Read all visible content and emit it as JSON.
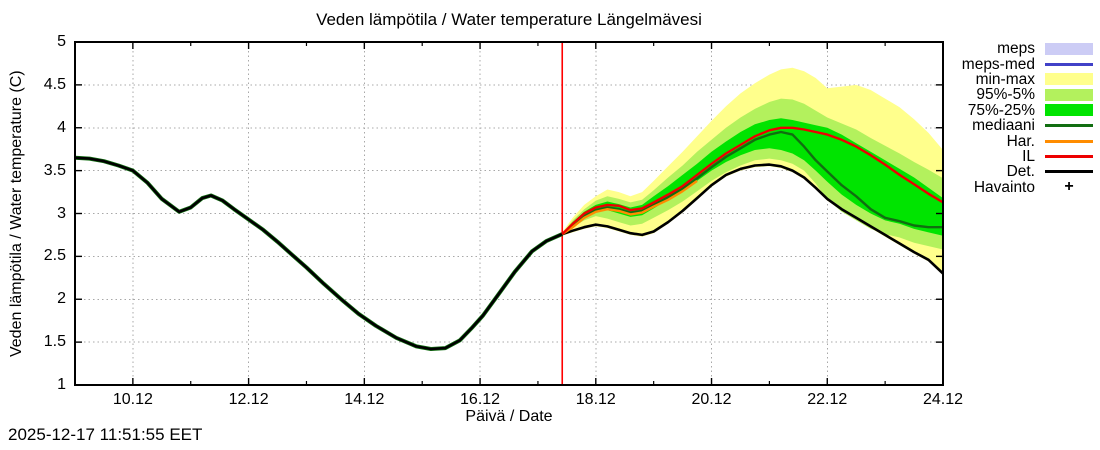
{
  "header": {
    "title": "Veden lämpötila / Water temperature Längelmävesi"
  },
  "footer": {
    "timestamp": "2025-12-17 11:51:55 EET"
  },
  "axes": {
    "xlabel": "Päivä / Date",
    "ylabel": "Veden lämpötila / Water temperature (C)"
  },
  "colors": {
    "grid": "#a8a8a8",
    "border": "#000000",
    "now_line": "#ff0000",
    "meps_band": "#ccccf5",
    "meps_med": "#4141c8",
    "min_max": "#ffff8c",
    "p95_5": "#b3f15d",
    "p75_25": "#00e400",
    "mediaani": "#116e11",
    "har": "#ff8c00",
    "il": "#ed0000",
    "det": "#000000",
    "havainto": "#000000"
  },
  "legend": {
    "items": [
      {
        "label": "meps",
        "type": "band",
        "color": "#ccccf5"
      },
      {
        "label": "meps-med",
        "type": "line",
        "color": "#4141c8"
      },
      {
        "label": "min-max",
        "type": "band",
        "color": "#ffff8c"
      },
      {
        "label": "95%-5%",
        "type": "band",
        "color": "#b3f15d"
      },
      {
        "label": "75%-25%",
        "type": "band",
        "color": "#00e400"
      },
      {
        "label": "mediaani",
        "type": "line",
        "color": "#116e11"
      },
      {
        "label": "Har.",
        "type": "line",
        "color": "#ff8c00"
      },
      {
        "label": "IL",
        "type": "line",
        "color": "#ed0000"
      },
      {
        "label": "Det.",
        "type": "line",
        "color": "#000000"
      },
      {
        "label": "Havainto",
        "type": "point",
        "color": "#000000"
      }
    ]
  },
  "chart_data": {
    "type": "line",
    "title": "Veden lämpötila / Water temperature Längelmävesi",
    "xlabel": "Päivä / Date",
    "ylabel": "Veden lämpötila / Water temperature (C)",
    "x_unit": "day of December (x.12)",
    "xlim": [
      9,
      24
    ],
    "ylim": [
      1,
      5
    ],
    "grid": true,
    "legend_position": "outside-right",
    "x_ticks": [
      {
        "d": 10,
        "label": "10.12"
      },
      {
        "d": 12,
        "label": "12.12"
      },
      {
        "d": 14,
        "label": "14.12"
      },
      {
        "d": 16,
        "label": "16.12"
      },
      {
        "d": 18,
        "label": "18.12"
      },
      {
        "d": 20,
        "label": "20.12"
      },
      {
        "d": 22,
        "label": "22.12"
      },
      {
        "d": 24,
        "label": "24.12"
      }
    ],
    "x_minor_ticks": [
      11,
      13,
      15,
      17,
      19,
      21,
      23
    ],
    "y_ticks": [
      {
        "v": 1,
        "label": "1"
      },
      {
        "v": 1.5,
        "label": "1.5"
      },
      {
        "v": 2,
        "label": "2"
      },
      {
        "v": 2.5,
        "label": "2.5"
      },
      {
        "v": 3,
        "label": "3"
      },
      {
        "v": 3.5,
        "label": "3.5"
      },
      {
        "v": 4,
        "label": "4"
      },
      {
        "v": 4.5,
        "label": "4.5"
      },
      {
        "v": 5,
        "label": "5"
      }
    ],
    "now_line": {
      "x": 17.42,
      "color": "#ff0000"
    },
    "observation": {
      "name": "Havainto / Det. (observed)",
      "x": [
        9.0,
        9.25,
        9.5,
        9.75,
        10.0,
        10.25,
        10.5,
        10.8,
        11.0,
        11.2,
        11.35,
        11.55,
        11.75,
        12.0,
        12.25,
        12.5,
        12.75,
        13.0,
        13.3,
        13.6,
        13.9,
        14.2,
        14.55,
        14.9,
        15.15,
        15.4,
        15.65,
        15.85,
        16.05,
        16.3,
        16.6,
        16.9,
        17.15,
        17.42
      ],
      "y": [
        3.65,
        3.64,
        3.61,
        3.56,
        3.5,
        3.36,
        3.17,
        3.02,
        3.07,
        3.18,
        3.21,
        3.15,
        3.05,
        2.93,
        2.81,
        2.67,
        2.52,
        2.37,
        2.18,
        2.0,
        1.83,
        1.69,
        1.55,
        1.45,
        1.42,
        1.43,
        1.52,
        1.66,
        1.81,
        2.04,
        2.32,
        2.56,
        2.68,
        2.76
      ]
    },
    "forecast_x": [
      17.42,
      17.6,
      17.8,
      18.0,
      18.2,
      18.4,
      18.6,
      18.8,
      19.0,
      19.25,
      19.5,
      19.75,
      20.0,
      20.25,
      20.5,
      20.75,
      21.0,
      21.2,
      21.4,
      21.6,
      21.8,
      22.0,
      22.25,
      22.5,
      22.75,
      23.0,
      23.25,
      23.5,
      23.75,
      24.0
    ],
    "bands": [
      {
        "name": "min-max",
        "color": "#ffff8c",
        "upper": [
          2.78,
          2.95,
          3.1,
          3.2,
          3.28,
          3.25,
          3.2,
          3.25,
          3.38,
          3.55,
          3.72,
          3.9,
          4.08,
          4.25,
          4.4,
          4.52,
          4.62,
          4.68,
          4.7,
          4.66,
          4.58,
          4.46,
          4.48,
          4.5,
          4.44,
          4.34,
          4.24,
          4.1,
          3.94,
          3.74
        ],
        "lower": [
          2.74,
          2.78,
          2.82,
          2.85,
          2.83,
          2.79,
          2.75,
          2.73,
          2.77,
          2.88,
          3.01,
          3.16,
          3.31,
          3.43,
          3.5,
          3.54,
          3.55,
          3.53,
          3.48,
          3.4,
          3.28,
          3.15,
          3.03,
          2.93,
          2.83,
          2.73,
          2.63,
          2.53,
          2.44,
          2.28
        ]
      },
      {
        "name": "95%-5%",
        "color": "#b3f15d",
        "upper": [
          2.77,
          2.92,
          3.05,
          3.15,
          3.2,
          3.17,
          3.13,
          3.16,
          3.27,
          3.42,
          3.56,
          3.72,
          3.86,
          4.0,
          4.12,
          4.22,
          4.3,
          4.34,
          4.33,
          4.28,
          4.2,
          4.12,
          4.05,
          3.98,
          3.88,
          3.79,
          3.7,
          3.6,
          3.51,
          3.41
        ],
        "lower": [
          2.75,
          2.84,
          2.92,
          2.97,
          2.94,
          2.9,
          2.86,
          2.88,
          2.95,
          3.04,
          3.14,
          3.26,
          3.38,
          3.48,
          3.56,
          3.62,
          3.64,
          3.62,
          3.58,
          3.5,
          3.35,
          3.16,
          3.02,
          2.92,
          2.82,
          2.76,
          2.72,
          2.66,
          2.62,
          2.58
        ]
      },
      {
        "name": "75%-25%",
        "color": "#00e400",
        "upper": [
          2.77,
          2.9,
          3.02,
          3.1,
          3.14,
          3.11,
          3.07,
          3.1,
          3.2,
          3.32,
          3.45,
          3.58,
          3.72,
          3.84,
          3.95,
          4.04,
          4.09,
          4.11,
          4.09,
          4.06,
          4.03,
          4.0,
          3.92,
          3.82,
          3.72,
          3.62,
          3.52,
          3.42,
          3.3,
          3.18
        ],
        "lower": [
          2.76,
          2.87,
          2.96,
          3.03,
          3.04,
          3.0,
          2.96,
          2.98,
          3.06,
          3.16,
          3.26,
          3.38,
          3.5,
          3.6,
          3.68,
          3.74,
          3.76,
          3.74,
          3.7,
          3.62,
          3.5,
          3.37,
          3.22,
          3.1,
          3.0,
          2.92,
          2.88,
          2.82,
          2.78,
          2.74
        ]
      }
    ],
    "forecast_lines": [
      {
        "name": "Det.",
        "color": "#000000",
        "width": 2.6,
        "y": [
          2.76,
          2.8,
          2.84,
          2.87,
          2.85,
          2.81,
          2.77,
          2.75,
          2.79,
          2.9,
          3.03,
          3.18,
          3.33,
          3.45,
          3.52,
          3.56,
          3.57,
          3.55,
          3.5,
          3.42,
          3.3,
          3.17,
          3.05,
          2.95,
          2.85,
          2.75,
          2.65,
          2.55,
          2.46,
          2.3
        ]
      },
      {
        "name": "mediaani",
        "color": "#116e11",
        "width": 2.4,
        "y": [
          2.76,
          2.86,
          2.97,
          3.04,
          3.07,
          3.05,
          3.01,
          3.03,
          3.1,
          3.19,
          3.29,
          3.41,
          3.54,
          3.66,
          3.76,
          3.86,
          3.92,
          3.95,
          3.92,
          3.78,
          3.62,
          3.49,
          3.33,
          3.2,
          3.05,
          2.95,
          2.91,
          2.86,
          2.84,
          2.84
        ]
      },
      {
        "name": "Har.",
        "color": "#ff8c00",
        "width": 2.4,
        "x": [
          17.42,
          17.6,
          17.8,
          18.0,
          18.2,
          18.4,
          18.6,
          18.8,
          19.0,
          19.25,
          19.5,
          19.75
        ],
        "y": [
          2.76,
          2.84,
          2.95,
          3.02,
          3.05,
          3.03,
          2.99,
          3.01,
          3.08,
          3.16,
          3.26,
          3.38
        ]
      },
      {
        "name": "IL",
        "color": "#ed0000",
        "width": 2.4,
        "y": [
          2.76,
          2.88,
          3.0,
          3.07,
          3.1,
          3.09,
          3.04,
          3.06,
          3.13,
          3.22,
          3.32,
          3.45,
          3.58,
          3.7,
          3.8,
          3.9,
          3.97,
          4.0,
          4.0,
          3.98,
          3.95,
          3.92,
          3.86,
          3.78,
          3.68,
          3.57,
          3.45,
          3.34,
          3.23,
          3.13
        ]
      }
    ]
  }
}
